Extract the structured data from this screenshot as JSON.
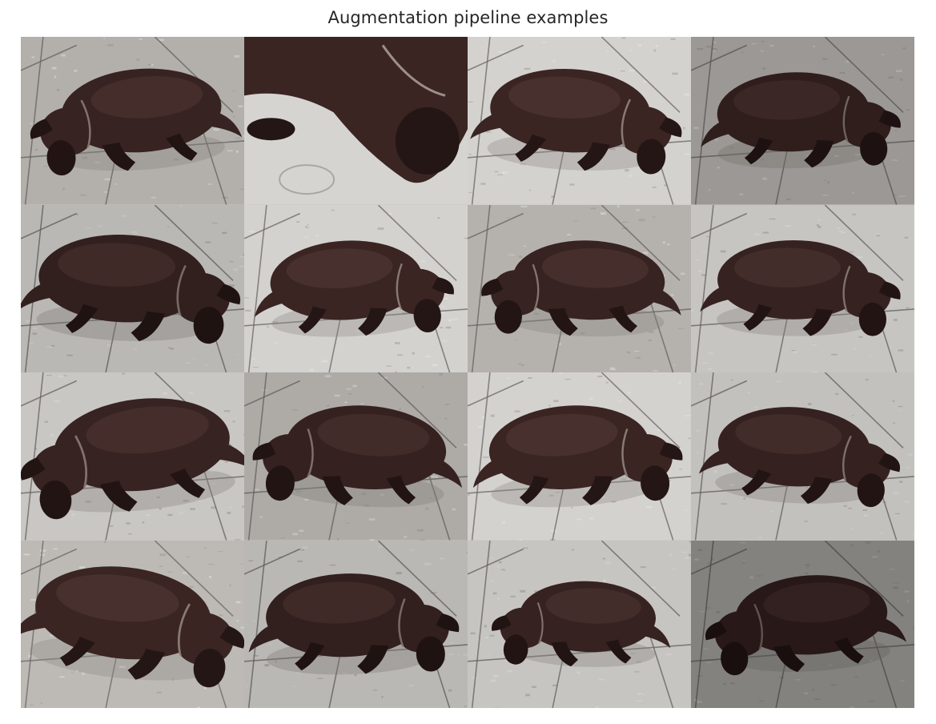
{
  "figure": {
    "title": "Augmentation pipeline examples"
  },
  "grid": {
    "rows": 4,
    "cols": 4
  },
  "colors": {
    "floor_light": "#d4d2cf",
    "floor_mid": "#bdbab6",
    "grout": "#6a6764",
    "dog_body": "#3a2523",
    "dog_dark": "#241615",
    "dog_highlight": "#5a3f3b",
    "collar": "#9c8f88"
  },
  "tiles": [
    {
      "kind": "dog",
      "flip": false,
      "rot": -4,
      "scale": 1.0,
      "shade": 0.05
    },
    {
      "kind": "closeup"
    },
    {
      "kind": "dog",
      "flip": true,
      "rot": 3,
      "scale": 1.0,
      "shade": 0.0
    },
    {
      "kind": "dog",
      "flip": true,
      "rot": -2,
      "scale": 0.95,
      "shade": 0.18
    },
    {
      "kind": "dog",
      "flip": true,
      "rot": 2,
      "scale": 1.05,
      "shade": 0.12
    },
    {
      "kind": "dog",
      "flip": true,
      "rot": -3,
      "scale": 0.95,
      "shade": 0.0
    },
    {
      "kind": "dog",
      "flip": false,
      "rot": 2,
      "scale": 0.95,
      "shade": 0.04
    },
    {
      "kind": "dog",
      "flip": true,
      "rot": 0,
      "scale": 0.95,
      "shade": 0.06
    },
    {
      "kind": "dog",
      "flip": false,
      "rot": -6,
      "scale": 1.1,
      "shade": 0.05
    },
    {
      "kind": "dog",
      "flip": false,
      "rot": 4,
      "scale": 1.0,
      "shade": 0.08
    },
    {
      "kind": "dog",
      "flip": true,
      "rot": -4,
      "scale": 1.0,
      "shade": 0.0
    },
    {
      "kind": "dog",
      "flip": true,
      "rot": 3,
      "scale": 0.95,
      "shade": 0.08
    },
    {
      "kind": "dog",
      "flip": true,
      "rot": 6,
      "scale": 1.1,
      "shade": 0.0
    },
    {
      "kind": "dog",
      "flip": true,
      "rot": -2,
      "scale": 1.0,
      "shade": 0.12
    },
    {
      "kind": "dog",
      "flip": false,
      "rot": 2,
      "scale": 0.85,
      "shade": 0.06
    },
    {
      "kind": "dog",
      "flip": false,
      "rot": -3,
      "scale": 0.95,
      "shade": 0.3
    }
  ]
}
